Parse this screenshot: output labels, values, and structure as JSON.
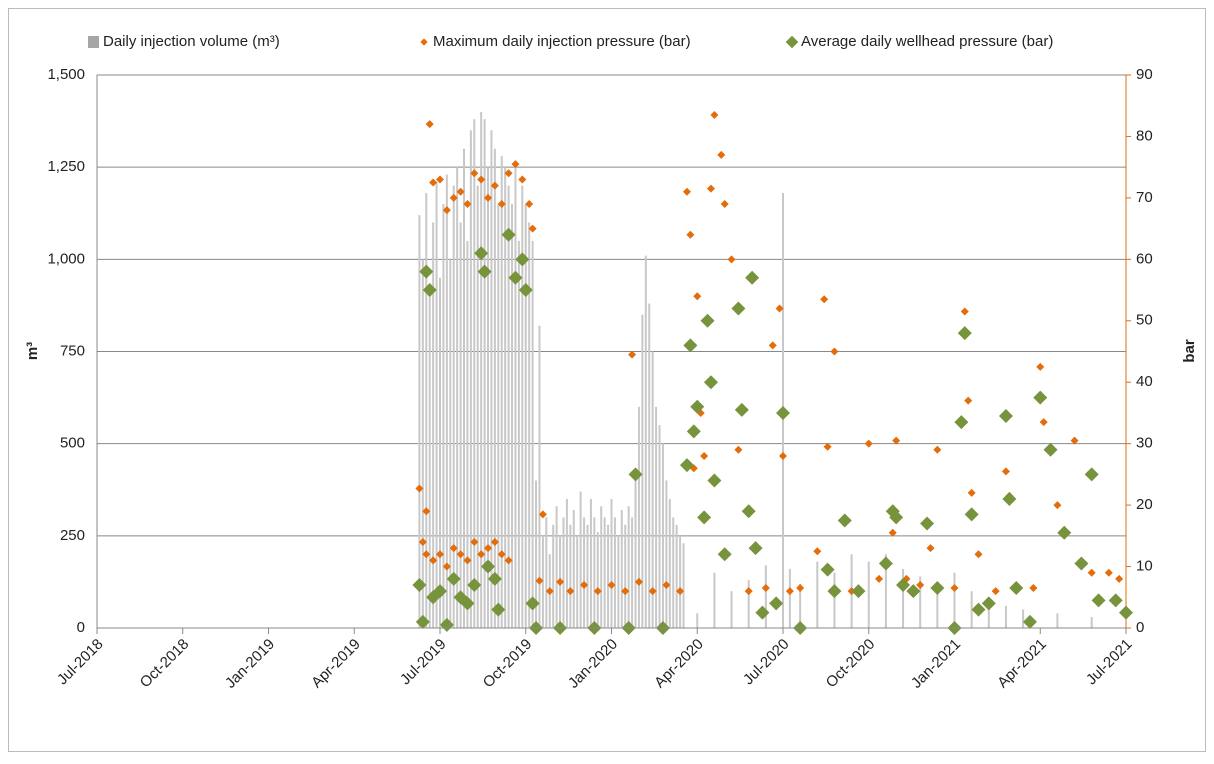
{
  "chart_data": {
    "type": "combo",
    "ylabel": "m³",
    "y2label": "bar",
    "xlim": [
      2018.5,
      2021.5
    ],
    "xticks": [
      {
        "value": 2018.5,
        "label": "Jul-2018"
      },
      {
        "value": 2018.75,
        "label": "Oct-2018"
      },
      {
        "value": 2019.0,
        "label": "Jan-2019"
      },
      {
        "value": 2019.25,
        "label": "Apr-2019"
      },
      {
        "value": 2019.5,
        "label": "Jul-2019"
      },
      {
        "value": 2019.75,
        "label": "Oct-2019"
      },
      {
        "value": 2020.0,
        "label": "Jan-2020"
      },
      {
        "value": 2020.25,
        "label": "Apr-2020"
      },
      {
        "value": 2020.5,
        "label": "Jul-2020"
      },
      {
        "value": 2020.75,
        "label": "Oct-2020"
      },
      {
        "value": 2021.0,
        "label": "Jan-2021"
      },
      {
        "value": 2021.25,
        "label": "Apr-2021"
      },
      {
        "value": 2021.5,
        "label": "Jul-2021"
      }
    ],
    "ylim": [
      0,
      1500
    ],
    "yticks": [
      0,
      250,
      500,
      750,
      {
        "value": 1000,
        "label": "1,000"
      },
      {
        "value": 1250,
        "label": "1,250"
      },
      {
        "value": 1500,
        "label": "1,500"
      }
    ],
    "y2lim": [
      0,
      90
    ],
    "y2ticks": [
      0,
      10,
      20,
      30,
      40,
      50,
      60,
      70,
      80,
      90
    ],
    "grid": true,
    "legend": "top",
    "series": [
      {
        "name": "Daily injection volume (m³)",
        "type": "bar",
        "color": "#c8c8c8",
        "x": [
          2019.44,
          2019.45,
          2019.46,
          2019.47,
          2019.48,
          2019.49,
          2019.5,
          2019.51,
          2019.52,
          2019.53,
          2019.54,
          2019.55,
          2019.56,
          2019.57,
          2019.58,
          2019.59,
          2019.6,
          2019.61,
          2019.62,
          2019.63,
          2019.64,
          2019.65,
          2019.66,
          2019.67,
          2019.68,
          2019.69,
          2019.7,
          2019.71,
          2019.72,
          2019.73,
          2019.74,
          2019.75,
          2019.76,
          2019.77,
          2019.78,
          2019.79,
          2019.8,
          2019.81,
          2019.82,
          2019.83,
          2019.84,
          2019.85,
          2019.86,
          2019.87,
          2019.88,
          2019.89,
          2019.9,
          2019.91,
          2019.92,
          2019.93,
          2019.94,
          2019.95,
          2019.96,
          2019.97,
          2019.98,
          2019.99,
          2020.0,
          2020.01,
          2020.02,
          2020.03,
          2020.04,
          2020.05,
          2020.06,
          2020.07,
          2020.08,
          2020.09,
          2020.1,
          2020.11,
          2020.12,
          2020.13,
          2020.14,
          2020.15,
          2020.16,
          2020.17,
          2020.18,
          2020.19,
          2020.2,
          2020.21,
          2020.25,
          2020.3,
          2020.35,
          2020.4,
          2020.45,
          2020.5,
          2020.52,
          2020.55,
          2020.6,
          2020.65,
          2020.7,
          2020.75,
          2020.8,
          2020.85,
          2020.9,
          2020.95,
          2021.0,
          2021.05,
          2021.1,
          2021.15,
          2021.2,
          2021.3,
          2021.4
        ],
        "values": [
          1120,
          1000,
          1180,
          900,
          1100,
          1210,
          950,
          1150,
          1230,
          1000,
          1200,
          1250,
          1100,
          1300,
          1050,
          1350,
          1380,
          1200,
          1400,
          1380,
          1250,
          1350,
          1300,
          1150,
          1280,
          1250,
          1200,
          1150,
          1250,
          1050,
          1200,
          1150,
          1100,
          1050,
          400,
          820,
          250,
          300,
          200,
          280,
          330,
          250,
          300,
          350,
          280,
          320,
          250,
          370,
          300,
          280,
          350,
          300,
          260,
          330,
          300,
          280,
          350,
          300,
          250,
          320,
          280,
          330,
          300,
          420,
          600,
          850,
          1010,
          880,
          750,
          600,
          550,
          500,
          400,
          350,
          300,
          280,
          250,
          230,
          40,
          150,
          100,
          130,
          170,
          1180,
          160,
          120,
          180,
          150,
          200,
          180,
          200,
          160,
          140,
          120,
          150,
          100,
          80,
          60,
          50,
          40,
          30
        ]
      },
      {
        "name": "Maximum daily injection pressure (bar)",
        "type": "scatter",
        "axis": "y2",
        "color": "#e46c0a",
        "size": 4,
        "x": [
          2019.44,
          2019.45,
          2019.46,
          2019.48,
          2019.5,
          2019.52,
          2019.54,
          2019.56,
          2019.58,
          2019.6,
          2019.62,
          2019.64,
          2019.66,
          2019.68,
          2019.7,
          2019.46,
          2019.47,
          2019.48,
          2019.5,
          2019.52,
          2019.54,
          2019.56,
          2019.58,
          2019.6,
          2019.62,
          2019.64,
          2019.66,
          2019.68,
          2019.7,
          2019.72,
          2019.74,
          2019.76,
          2019.77,
          2019.8,
          2019.79,
          2019.82,
          2019.85,
          2019.88,
          2019.92,
          2019.96,
          2020.0,
          2020.04,
          2020.08,
          2020.12,
          2020.16,
          2020.2,
          2020.06,
          2020.22,
          2020.23,
          2020.24,
          2020.25,
          2020.26,
          2020.27,
          2020.29,
          2020.3,
          2020.32,
          2020.33,
          2020.35,
          2020.37,
          2020.4,
          2020.45,
          2020.47,
          2020.49,
          2020.5,
          2020.52,
          2020.55,
          2020.6,
          2020.62,
          2020.63,
          2020.65,
          2020.7,
          2020.75,
          2020.78,
          2020.82,
          2020.83,
          2020.86,
          2020.9,
          2020.93,
          2020.95,
          2021.0,
          2021.03,
          2021.04,
          2021.05,
          2021.07,
          2021.12,
          2021.15,
          2021.16,
          2021.23,
          2021.25,
          2021.26,
          2021.3,
          2021.35,
          2021.4,
          2021.45,
          2021.48
        ],
        "values": [
          22.7,
          14,
          12,
          11,
          12,
          10,
          13,
          12,
          11,
          14,
          12,
          13,
          14,
          12,
          11,
          19,
          82,
          72.5,
          73,
          68,
          70,
          71,
          69,
          74,
          73,
          70,
          72,
          69,
          74,
          75.5,
          73,
          69,
          65,
          18.5,
          7.7,
          6,
          7.5,
          6,
          7,
          6,
          7,
          6,
          7.5,
          6,
          7,
          6,
          44.5,
          71,
          64,
          26,
          54,
          35,
          28,
          71.5,
          83.5,
          77,
          69,
          60,
          29,
          6,
          6.5,
          46,
          52,
          28,
          6,
          6.5,
          12.5,
          53.5,
          29.5,
          45,
          6,
          30,
          8,
          15.5,
          30.5,
          8,
          7,
          13,
          29,
          6.5,
          51.5,
          37,
          22,
          12,
          6,
          25.5,
          21.5,
          6.5,
          42.5,
          33.5,
          20,
          30.5,
          9,
          9,
          8
        ]
      },
      {
        "name": "Average daily wellhead pressure (bar)",
        "type": "scatter",
        "axis": "y2",
        "color": "#77933c",
        "size": 7,
        "x": [
          2019.44,
          2019.45,
          2019.46,
          2019.47,
          2019.48,
          2019.5,
          2019.52,
          2019.54,
          2019.56,
          2019.58,
          2019.6,
          2019.62,
          2019.63,
          2019.64,
          2019.66,
          2019.67,
          2019.7,
          2019.72,
          2019.74,
          2019.75,
          2019.77,
          2019.78,
          2019.85,
          2019.95,
          2020.05,
          2020.07,
          2020.15,
          2020.22,
          2020.23,
          2020.24,
          2020.25,
          2020.27,
          2020.28,
          2020.29,
          2020.3,
          2020.33,
          2020.37,
          2020.38,
          2020.4,
          2020.41,
          2020.42,
          2020.44,
          2020.48,
          2020.5,
          2020.55,
          2020.63,
          2020.65,
          2020.68,
          2020.72,
          2020.8,
          2020.82,
          2020.83,
          2020.85,
          2020.88,
          2020.92,
          2020.95,
          2021.0,
          2021.02,
          2021.03,
          2021.05,
          2021.07,
          2021.1,
          2021.15,
          2021.16,
          2021.18,
          2021.22,
          2021.25,
          2021.28,
          2021.32,
          2021.37,
          2021.4,
          2021.42,
          2021.47,
          2021.5
        ],
        "values": [
          7,
          1,
          58,
          55,
          5,
          6,
          0.5,
          8,
          5,
          4,
          7,
          61,
          58,
          10,
          8,
          3,
          64,
          57,
          60,
          55,
          4,
          0,
          0,
          0,
          0,
          25,
          0,
          26.5,
          46,
          32,
          36,
          18,
          50,
          40,
          24,
          12,
          52,
          35.5,
          19,
          57,
          13,
          2.5,
          4,
          35,
          0,
          9.5,
          6,
          17.5,
          6,
          10.5,
          19,
          18,
          7,
          6,
          17,
          6.5,
          0,
          33.5,
          48,
          18.5,
          3,
          4,
          34.5,
          21,
          6.5,
          1,
          37.5,
          29,
          15.5,
          10.5,
          25,
          4.5,
          4.5,
          2.5
        ]
      }
    ]
  }
}
